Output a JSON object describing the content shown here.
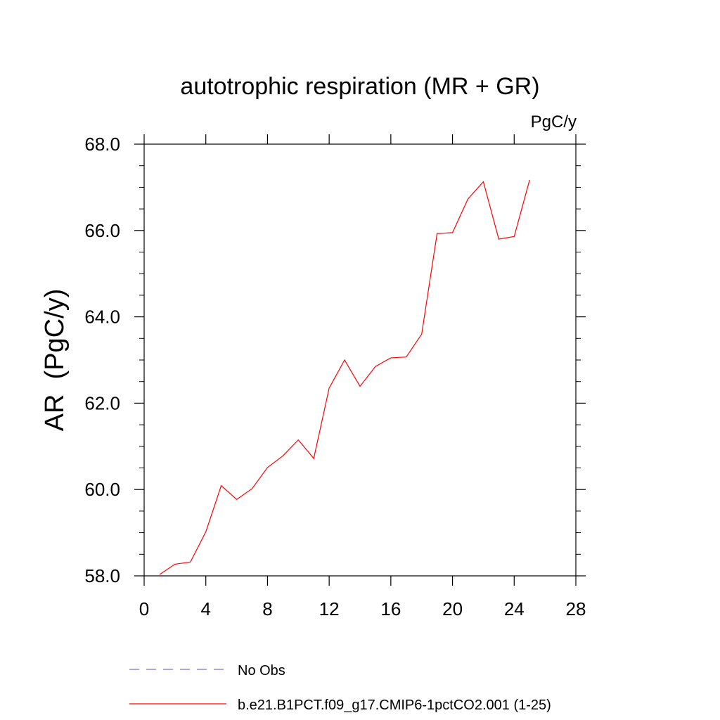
{
  "chart_data": {
    "type": "line",
    "title": "autotrophic respiration (MR + GR)",
    "units_label": "PgC/y",
    "ylabel": "AR  (PgC/y)",
    "xlabel": "",
    "xlim": [
      0,
      28
    ],
    "ylim": [
      58,
      68
    ],
    "x_ticks": [
      0,
      4,
      8,
      12,
      16,
      20,
      24,
      28
    ],
    "x_tick_labels": [
      "0",
      "4",
      "8",
      "12",
      "16",
      "20",
      "24",
      "28"
    ],
    "y_ticks": [
      58,
      60,
      62,
      64,
      66,
      68
    ],
    "y_tick_labels": [
      "58.0",
      "60.0",
      "62.0",
      "64.0",
      "66.0",
      "68.0"
    ],
    "grid": false,
    "legend_position": "bottom",
    "series": [
      {
        "name": "No Obs",
        "color": "#7b6fd6",
        "dash": "dashed",
        "x": [],
        "values": []
      },
      {
        "name": "b.e21.B1PCT.f09_g17.CMIP6-1pctCO2.001 (1-25)",
        "color": "#ff0000",
        "dash": "solid",
        "x": [
          1,
          2,
          3,
          4,
          5,
          6,
          7,
          8,
          9,
          10,
          11,
          12,
          13,
          14,
          15,
          16,
          17,
          18,
          19,
          20,
          21,
          22,
          23,
          24,
          25
        ],
        "values": [
          58.03,
          58.27,
          58.32,
          59.02,
          60.09,
          59.77,
          60.02,
          60.51,
          60.78,
          61.15,
          60.72,
          62.35,
          63.0,
          62.39,
          62.85,
          63.05,
          63.07,
          63.6,
          65.93,
          65.95,
          66.73,
          67.13,
          65.8,
          65.86,
          67.17
        ]
      }
    ]
  }
}
